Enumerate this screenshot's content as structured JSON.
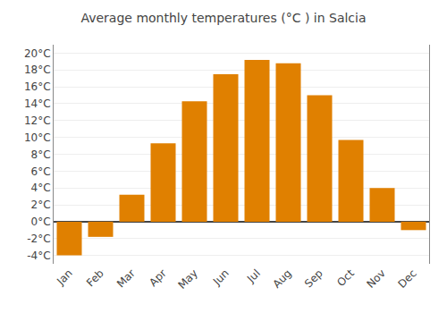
{
  "chart_data": {
    "type": "bar",
    "title": "Average monthly temperatures (°C ) in Salcia",
    "categories": [
      "Jan",
      "Feb",
      "Mar",
      "Apr",
      "May",
      "Jun",
      "Jul",
      "Aug",
      "Sep",
      "Oct",
      "Nov",
      "Dec"
    ],
    "values": [
      -4.0,
      -1.8,
      3.2,
      9.3,
      14.3,
      17.5,
      19.2,
      18.8,
      15.0,
      9.7,
      4.0,
      -1.0
    ],
    "color": "#E08000",
    "ylim": [
      -5,
      21
    ],
    "yticks": [
      {
        "value": -4,
        "label": "-4°C"
      },
      {
        "value": -2,
        "label": "-2°C"
      },
      {
        "value": 0,
        "label": "0°C"
      },
      {
        "value": 2,
        "label": "2°C"
      },
      {
        "value": 4,
        "label": "4°C"
      },
      {
        "value": 6,
        "label": "6°C"
      },
      {
        "value": 8,
        "label": "8°C"
      },
      {
        "value": 10,
        "label": "10°C"
      },
      {
        "value": 12,
        "label": "12°C"
      },
      {
        "value": 14,
        "label": "14°C"
      },
      {
        "value": 16,
        "label": "16°C"
      },
      {
        "value": 18,
        "label": "18°C"
      },
      {
        "value": 20,
        "label": "20°C"
      }
    ],
    "grid": true
  }
}
